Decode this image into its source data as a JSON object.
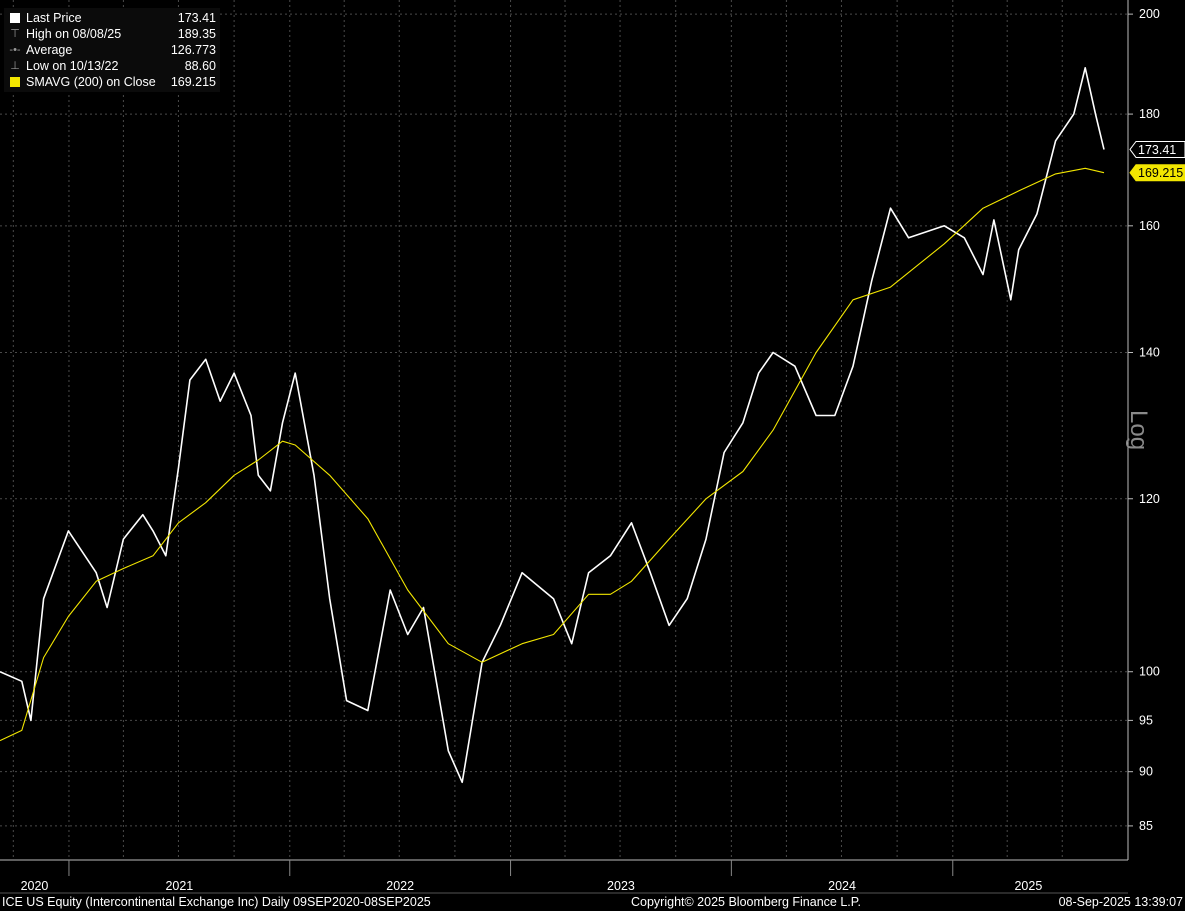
{
  "legend": {
    "items": [
      {
        "icon": "square-filled-icon",
        "label": "Last Price",
        "value": "173.41",
        "color": "#ffffff"
      },
      {
        "icon": "high-marker-icon",
        "label": "High on 08/08/25",
        "value": "189.35"
      },
      {
        "icon": "average-marker-icon",
        "label": "Average",
        "value": "126.773"
      },
      {
        "icon": "low-marker-icon",
        "label": "Low on 10/13/22",
        "value": "88.60"
      },
      {
        "icon": "square-filled-icon",
        "label": "SMAVG (200)  on Close",
        "value": "169.215",
        "color": "#f2e600"
      }
    ]
  },
  "axis": {
    "scale_label": "Log",
    "price_tag": "173.41",
    "sma_tag": "169.215"
  },
  "footer": {
    "security": "ICE US Equity (Intercontinental Exchange Inc)  Daily 09SEP2020-08SEP2025",
    "copyright": "Copyright© 2025 Bloomberg Finance L.P.",
    "timestamp": "08-Sep-2025 13:39:07"
  },
  "chart_data": {
    "type": "line",
    "y_scale": "log",
    "ylim": [
      82,
      203
    ],
    "xlim": [
      "2020-09-09",
      "2025-09-08"
    ],
    "yticks": [
      85,
      90,
      95,
      100,
      120,
      140,
      160,
      180,
      200
    ],
    "year_labels": [
      "2020",
      "2021",
      "2022",
      "2023",
      "2024",
      "2025"
    ],
    "colors": {
      "price": "#ffffff",
      "sma": "#f2e600",
      "grid": "#4a4a4a",
      "background": "#000000"
    },
    "series": [
      {
        "name": "Last Price",
        "x": [
          "2020-09-09",
          "2020-10-15",
          "2020-10-30",
          "2020-11-20",
          "2020-12-31",
          "2021-02-15",
          "2021-03-05",
          "2021-04-01",
          "2021-05-03",
          "2021-05-20",
          "2021-06-10",
          "2021-07-01",
          "2021-07-20",
          "2021-08-15",
          "2021-09-08",
          "2021-10-01",
          "2021-10-29",
          "2021-11-10",
          "2021-11-30",
          "2021-12-20",
          "2022-01-10",
          "2022-02-10",
          "2022-03-08",
          "2022-04-05",
          "2022-05-10",
          "2022-06-16",
          "2022-07-15",
          "2022-08-10",
          "2022-09-20",
          "2022-10-13",
          "2022-11-15",
          "2022-12-15",
          "2023-01-20",
          "2023-03-13",
          "2023-04-12",
          "2023-05-10",
          "2023-06-15",
          "2023-07-20",
          "2023-08-20",
          "2023-09-20",
          "2023-10-20",
          "2023-11-20",
          "2023-12-20",
          "2024-01-20",
          "2024-02-15",
          "2024-03-10",
          "2024-04-15",
          "2024-05-20",
          "2024-06-20",
          "2024-07-20",
          "2024-08-20",
          "2024-09-20",
          "2024-10-20",
          "2024-12-18",
          "2025-01-20",
          "2025-02-20",
          "2025-03-10",
          "2025-04-07",
          "2025-04-20",
          "2025-05-20",
          "2025-06-20",
          "2025-07-20",
          "2025-08-08",
          "2025-08-25",
          "2025-09-08"
        ],
        "y": [
          100,
          99,
          95,
          108,
          116,
          111,
          107,
          115,
          118,
          116,
          113,
          124,
          136,
          139,
          133,
          137,
          131,
          123,
          121,
          130,
          137,
          123,
          108,
          97,
          96,
          109,
          104,
          107,
          92,
          89,
          101,
          105,
          111,
          108,
          103,
          111,
          113,
          117,
          111,
          105,
          108,
          115,
          126,
          130,
          137,
          140,
          138,
          131,
          131,
          138,
          151,
          163,
          158,
          160,
          158,
          152,
          161,
          148,
          156,
          162,
          175,
          180,
          189,
          180,
          173.41
        ]
      },
      {
        "name": "SMAVG (200)  on Close",
        "x": [
          "2020-09-09",
          "2020-10-15",
          "2020-11-20",
          "2020-12-31",
          "2021-02-15",
          "2021-04-01",
          "2021-05-20",
          "2021-07-01",
          "2021-08-15",
          "2021-10-01",
          "2021-11-10",
          "2021-12-20",
          "2022-01-10",
          "2022-03-08",
          "2022-05-10",
          "2022-07-15",
          "2022-09-20",
          "2022-11-15",
          "2023-01-20",
          "2023-03-13",
          "2023-05-10",
          "2023-06-15",
          "2023-07-20",
          "2023-09-20",
          "2023-11-20",
          "2024-01-20",
          "2024-03-10",
          "2024-05-20",
          "2024-07-20",
          "2024-09-20",
          "2024-12-18",
          "2025-02-20",
          "2025-04-20",
          "2025-06-20",
          "2025-08-08",
          "2025-09-08"
        ],
        "y": [
          93,
          94,
          101.5,
          106,
          110,
          111.5,
          113,
          117,
          119.5,
          123,
          125,
          127.5,
          127,
          123,
          117.5,
          109,
          103,
          101,
          103,
          104,
          108.5,
          108.5,
          110,
          115,
          120,
          123.5,
          129,
          140,
          148,
          150,
          157,
          163,
          166,
          169,
          170,
          169.215
        ]
      }
    ]
  }
}
